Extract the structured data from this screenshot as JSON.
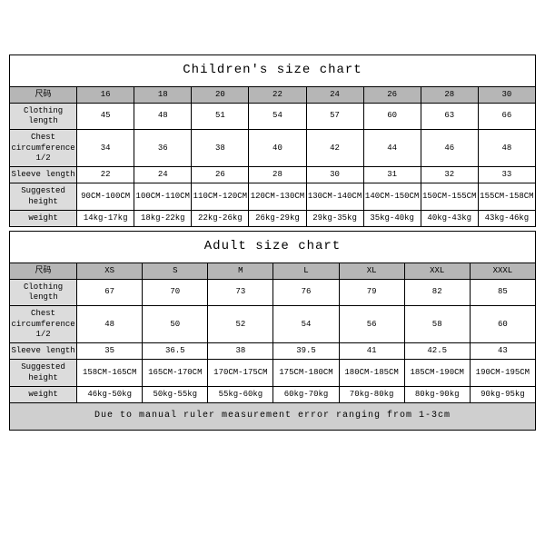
{
  "children": {
    "title": "Children's size chart",
    "row_header": "尺码",
    "sizes": [
      "16",
      "18",
      "20",
      "22",
      "24",
      "26",
      "28",
      "30"
    ],
    "rows": {
      "clothing_length": {
        "label": "Clothing length",
        "v": [
          "45",
          "48",
          "51",
          "54",
          "57",
          "60",
          "63",
          "66"
        ]
      },
      "chest": {
        "label": "Chest circumference 1/2",
        "v": [
          "34",
          "36",
          "38",
          "40",
          "42",
          "44",
          "46",
          "48"
        ]
      },
      "sleeve": {
        "label": "Sleeve length",
        "v": [
          "22",
          "24",
          "26",
          "28",
          "30",
          "31",
          "32",
          "33"
        ]
      },
      "height": {
        "label": "Suggested height",
        "v": [
          "90CM-100CM",
          "100CM-110CM",
          "110CM-120CM",
          "120CM-130CM",
          "130CM-140CM",
          "140CM-150CM",
          "150CM-155CM",
          "155CM-158CM"
        ]
      },
      "weight": {
        "label": "weight",
        "v": [
          "14kg-17kg",
          "18kg-22kg",
          "22kg-26kg",
          "26kg-29kg",
          "29kg-35kg",
          "35kg-40kg",
          "40kg-43kg",
          "43kg-46kg"
        ]
      }
    }
  },
  "adult": {
    "title": "Adult size chart",
    "row_header": "尺码",
    "sizes": [
      "XS",
      "S",
      "M",
      "L",
      "XL",
      "XXL",
      "XXXL"
    ],
    "rows": {
      "clothing_length": {
        "label": "Clothing length",
        "v": [
          "67",
          "70",
          "73",
          "76",
          "79",
          "82",
          "85"
        ]
      },
      "chest": {
        "label": "Chest circumference 1/2",
        "v": [
          "48",
          "50",
          "52",
          "54",
          "56",
          "58",
          "60"
        ]
      },
      "sleeve": {
        "label": "Sleeve length",
        "v": [
          "35",
          "36.5",
          "38",
          "39.5",
          "41",
          "42.5",
          "43"
        ]
      },
      "height": {
        "label": "Suggested height",
        "v": [
          "158CM-165CM",
          "165CM-170CM",
          "170CM-175CM",
          "175CM-180CM",
          "180CM-185CM",
          "185CM-190CM",
          "190CM-195CM"
        ]
      },
      "weight": {
        "label": "weight",
        "v": [
          "46kg-50kg",
          "50kg-55kg",
          "55kg-60kg",
          "60kg-70kg",
          "70kg-80kg",
          "80kg-90kg",
          "90kg-95kg"
        ]
      }
    },
    "footnote": "Due to manual ruler measurement error ranging from 1-3cm"
  },
  "style": {
    "header_bg": "#b6b6b6",
    "rowlabel_bg": "#dcdcdc",
    "foot_bg": "#cfcfcf",
    "border": "#000000",
    "font": "Courier New"
  }
}
